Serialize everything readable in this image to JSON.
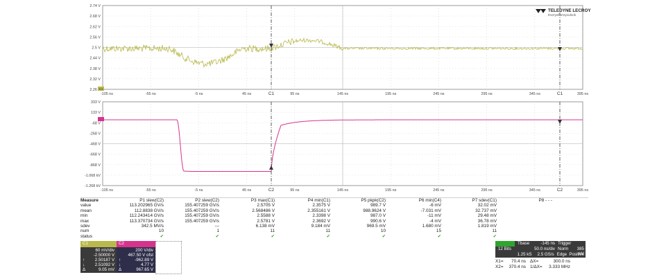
{
  "top_plot": {
    "y_labels": [
      "2.74 V",
      "2.68 V",
      "2.62 V",
      "2.56 V",
      "2.5 V",
      "2.44 V",
      "2.38 V",
      "2.32 V",
      "2.26 V"
    ],
    "x_labels": [
      "-105 ns",
      "-55 ns",
      "-5 ns",
      "45 ns",
      "95 ns",
      "145 ns",
      "195 ns",
      "245 ns",
      "295 ns",
      "345 ns",
      "395 ns"
    ],
    "cursor1_label": "C1",
    "cursor2_label": "C1",
    "channel_marker": "C1",
    "color": "#b9b84c",
    "logo_brand": "TELEDYNE LECROY",
    "logo_tagline": "Everywhereyoulook"
  },
  "bottom_plot": {
    "y_labels": [
      "333 V",
      "133 V",
      "-68 V",
      "-268 V",
      "-468 V",
      "-668 V",
      "-868 V",
      "-1.068 kV",
      "-1.268 kV"
    ],
    "x_labels": [
      "-105 ns",
      "-55 ns",
      "-5 ns",
      "45 ns",
      "95 ns",
      "145 ns",
      "195 ns",
      "245 ns",
      "295 ns",
      "345 ns",
      "395 ns"
    ],
    "cursor1_label": "C2",
    "cursor2_label": "C2",
    "color": "#d6338c"
  },
  "measure": {
    "title": "Measure",
    "columns": [
      "P1 slew(C2)",
      "P2 slew(C2)",
      "P3 max(C1)",
      "P4 min(C1)",
      "P5 pkpk(C2)",
      "P6 min(C4)",
      "P7 sdev(C1)",
      "P8 - - -"
    ],
    "rows": [
      {
        "label": "value",
        "cells": [
          "113.202965 GV/s",
          "155.407259 GV/s",
          "2.5705 V",
          "2.3575 V",
          "989.7 V",
          "-6 mV",
          "32.02 mV",
          ""
        ]
      },
      {
        "label": "mean",
        "cells": [
          "112.8838 GV/s",
          "155.407259 GV/s",
          "2.568486 V",
          "2.355161 V",
          "988.9624 V",
          "-7.031 mV",
          "32.737 mV",
          ""
        ]
      },
      {
        "label": "min",
        "cells": [
          "112.243414 GV/s",
          "155.407259 GV/s",
          "2.5588 V",
          "2.3398 V",
          "987.0 V",
          "-11 mV",
          "29.48 mV",
          ""
        ]
      },
      {
        "label": "max",
        "cells": [
          "113.370734 GV/s",
          "155.407259 GV/s",
          "2.5781 V",
          "2.3692 V",
          "990.6 V",
          "-4 mV",
          "36.78 mV",
          ""
        ]
      },
      {
        "label": "sdev",
        "cells": [
          "342.5 MV/s",
          "---",
          "6.138 mV",
          "9.184 mV",
          "969.5 mV",
          "1.680 mV",
          "1.819 mV",
          ""
        ]
      },
      {
        "label": "num",
        "cells": [
          "10",
          "1",
          "11",
          "11",
          "10",
          "15",
          "11",
          ""
        ]
      },
      {
        "label": "status",
        "cells": [
          "✔",
          "✔",
          "✔",
          "✔",
          "✔",
          "✔",
          "✔",
          ""
        ]
      }
    ]
  },
  "ch1": {
    "tag": "C1",
    "rows": [
      [
        "",
        "60 mV/div"
      ],
      [
        "",
        "-2.50000 V"
      ],
      [
        "↑",
        "2.50187 V"
      ],
      [
        "↓",
        "2.51092 V"
      ],
      [
        "Δ",
        "9.05 mV"
      ]
    ]
  },
  "ch2": {
    "tag": "C2",
    "rows": [
      [
        "",
        "200 V/div"
      ],
      [
        "",
        "467.50 V ofst"
      ],
      [
        "↑",
        "-962.89 V"
      ],
      [
        "↓",
        "4.77 V"
      ],
      [
        "Δ",
        "967.65 V"
      ]
    ]
  },
  "timebase": {
    "row1": [
      "",
      "Tbase",
      "-145 ns",
      "Trigger",
      ""
    ],
    "row2": [
      "12 Bits",
      "50.0 ns/div",
      "Norm",
      "385 mV"
    ],
    "row3": [
      "",
      "1.25 kS",
      "2.5 GS/s",
      "Edge",
      "Positive"
    ]
  },
  "cursors": {
    "x1": "X1=",
    "x1v": "70.4 ns",
    "dx": "ΔX=",
    "dxv": "300.0 ns",
    "x2": "X2=",
    "x2v": "370.4 ns",
    "idx": "1/ΔX=",
    "idxv": "3.333 MHz"
  }
}
